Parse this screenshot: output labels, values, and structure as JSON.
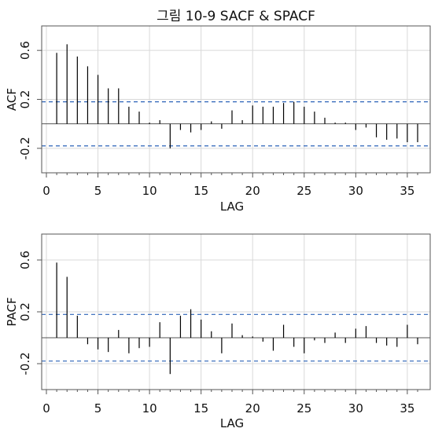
{
  "title": "그림 10-9 SACF & SPACF",
  "chart_data": [
    {
      "type": "bar",
      "ylabel": "ACF",
      "xlabel": "LAG",
      "xlim": [
        0,
        36
      ],
      "ylim": [
        -0.4,
        0.8
      ],
      "x_ticks": [
        "0",
        "5",
        "10",
        "15",
        "20",
        "25",
        "30",
        "35"
      ],
      "y_ticks": [
        "-0.2",
        "0.2",
        "0.6"
      ],
      "grid": true,
      "bound_style": "dashed blue",
      "bounds": [
        0.18,
        -0.18
      ],
      "lags": [
        1,
        2,
        3,
        4,
        5,
        6,
        7,
        8,
        9,
        10,
        11,
        12,
        13,
        14,
        15,
        16,
        17,
        18,
        19,
        20,
        21,
        22,
        23,
        24,
        25,
        26,
        27,
        28,
        29,
        30,
        31,
        32,
        33,
        34,
        35,
        36
      ],
      "values": [
        0.58,
        0.65,
        0.55,
        0.47,
        0.4,
        0.29,
        0.29,
        0.14,
        0.1,
        0.01,
        0.03,
        -0.2,
        -0.05,
        -0.07,
        -0.05,
        0.02,
        -0.04,
        0.11,
        0.03,
        0.15,
        0.14,
        0.14,
        0.17,
        0.18,
        0.14,
        0.1,
        0.05,
        0.01,
        0.01,
        -0.05,
        -0.03,
        -0.11,
        -0.13,
        -0.12,
        -0.15,
        -0.15
      ]
    },
    {
      "type": "bar",
      "ylabel": "PACF",
      "xlabel": "LAG",
      "xlim": [
        0,
        36
      ],
      "ylim": [
        -0.4,
        0.8
      ],
      "x_ticks": [
        "0",
        "5",
        "10",
        "15",
        "20",
        "25",
        "30",
        "35"
      ],
      "y_ticks": [
        "-0.2",
        "0.2",
        "0.6"
      ],
      "grid": true,
      "bound_style": "dashed blue",
      "bounds": [
        0.18,
        -0.18
      ],
      "lags": [
        1,
        2,
        3,
        4,
        5,
        6,
        7,
        8,
        9,
        10,
        11,
        12,
        13,
        14,
        15,
        16,
        17,
        18,
        19,
        20,
        21,
        22,
        23,
        24,
        25,
        26,
        27,
        28,
        29,
        30,
        31,
        32,
        33,
        34,
        35,
        36
      ],
      "values": [
        0.58,
        0.47,
        0.17,
        -0.05,
        -0.09,
        -0.11,
        0.06,
        -0.12,
        -0.08,
        -0.07,
        0.12,
        -0.28,
        0.17,
        0.22,
        0.14,
        0.05,
        -0.12,
        0.11,
        0.02,
        0.01,
        -0.03,
        -0.1,
        0.1,
        -0.07,
        -0.12,
        -0.02,
        -0.04,
        0.04,
        -0.04,
        0.07,
        0.09,
        -0.04,
        -0.06,
        -0.07,
        0.1,
        -0.05
      ]
    }
  ],
  "colors": {
    "bound_line": "#2b62b8",
    "spike": "#000000",
    "zero_line": "#555555",
    "grid": "#d9d9d9",
    "frame": "#555555"
  }
}
